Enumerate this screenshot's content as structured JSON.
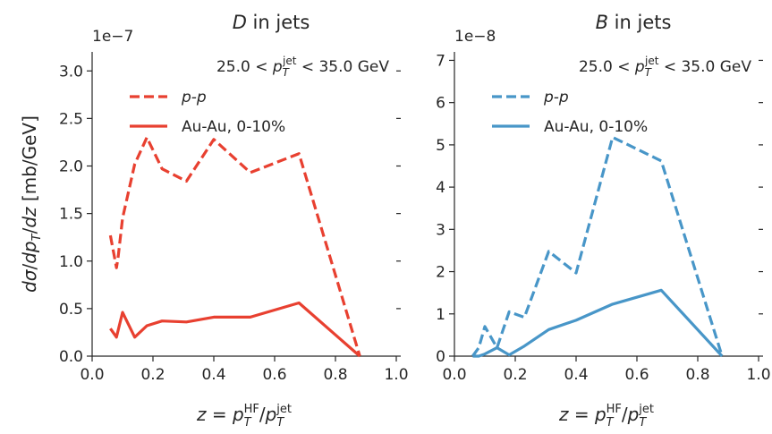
{
  "figure": {
    "ylabel": "dσ/dp_T/dz [mb/GeV]",
    "xlabel": "z = p_T^HF/p_T^jet"
  },
  "chart_data": [
    {
      "type": "line",
      "title": "D in jets",
      "title_italic": "D",
      "title_rest": " in jets",
      "multiplier": "1e−7",
      "scale": 1e-07,
      "annotation": "25.0 < p_T^jet < 35.0 GeV",
      "annotation_parts": {
        "lo": "25.0",
        "var": "p",
        "sub": "T",
        "sup": "jet",
        "hi": "35.0 GeV"
      },
      "color": "#e84030",
      "xlim": [
        0.0,
        1.0
      ],
      "ylim": [
        0.0,
        3.2
      ],
      "xticks": [
        0.0,
        0.2,
        0.4,
        0.6,
        0.8,
        1.0
      ],
      "xtick_labels": [
        "0.0",
        "0.2",
        "0.4",
        "0.6",
        "0.8",
        "1.0"
      ],
      "yticks": [
        0.0,
        0.5,
        1.0,
        1.5,
        2.0,
        2.5,
        3.0
      ],
      "ytick_labels": [
        "0.0",
        "0.5",
        "1.0",
        "1.5",
        "2.0",
        "2.5",
        "3.0"
      ],
      "xlabel": "z = p_T^HF/p_T^jet",
      "ylabel": "dσ/dp_T/dz [mb/GeV]",
      "legend_position": "upper-left",
      "series": [
        {
          "name": "p-p",
          "style": "dashed",
          "x": [
            0.06,
            0.08,
            0.085,
            0.1,
            0.14,
            0.18,
            0.23,
            0.31,
            0.4,
            0.52,
            0.68,
            0.88
          ],
          "y": [
            1.27,
            0.93,
            1.03,
            1.45,
            2.02,
            2.3,
            1.97,
            1.84,
            2.28,
            1.93,
            2.13,
            0.0
          ]
        },
        {
          "name": "Au-Au, 0-10%",
          "style": "solid",
          "x": [
            0.06,
            0.08,
            0.1,
            0.14,
            0.18,
            0.23,
            0.31,
            0.4,
            0.52,
            0.68,
            0.88
          ],
          "y": [
            0.29,
            0.2,
            0.46,
            0.2,
            0.32,
            0.37,
            0.36,
            0.41,
            0.41,
            0.56,
            0.0
          ]
        }
      ]
    },
    {
      "type": "line",
      "title": "B in jets",
      "title_italic": "B",
      "title_rest": " in jets",
      "multiplier": "1e−8",
      "scale": 1e-08,
      "annotation": "25.0 < p_T^jet < 35.0 GeV",
      "annotation_parts": {
        "lo": "25.0",
        "var": "p",
        "sub": "T",
        "sup": "jet",
        "hi": "35.0 GeV"
      },
      "color": "#4896c8",
      "xlim": [
        0.0,
        1.0
      ],
      "ylim": [
        0.0,
        7.2
      ],
      "xticks": [
        0.0,
        0.2,
        0.4,
        0.6,
        0.8,
        1.0
      ],
      "xtick_labels": [
        "0.0",
        "0.2",
        "0.4",
        "0.6",
        "0.8",
        "1.0"
      ],
      "yticks": [
        0,
        1,
        2,
        3,
        4,
        5,
        6,
        7
      ],
      "ytick_labels": [
        "0",
        "1",
        "2",
        "3",
        "4",
        "5",
        "6",
        "7"
      ],
      "xlabel": "z = p_T^HF/p_T^jet",
      "ylabel": "",
      "legend_position": "upper-left",
      "series": [
        {
          "name": "p-p",
          "style": "dashed",
          "x": [
            0.06,
            0.08,
            0.1,
            0.14,
            0.18,
            0.23,
            0.31,
            0.4,
            0.52,
            0.68,
            0.88
          ],
          "y": [
            0.0,
            0.2,
            0.7,
            0.2,
            1.05,
            0.92,
            2.48,
            1.97,
            5.18,
            4.62,
            0.0
          ]
        },
        {
          "name": "Au-Au, 0-10%",
          "style": "solid",
          "x": [
            0.06,
            0.08,
            0.1,
            0.14,
            0.18,
            0.23,
            0.31,
            0.4,
            0.52,
            0.68,
            0.88
          ],
          "y": [
            0.0,
            0.0,
            0.05,
            0.2,
            0.03,
            0.24,
            0.63,
            0.85,
            1.23,
            1.56,
            0.0
          ]
        }
      ]
    }
  ]
}
